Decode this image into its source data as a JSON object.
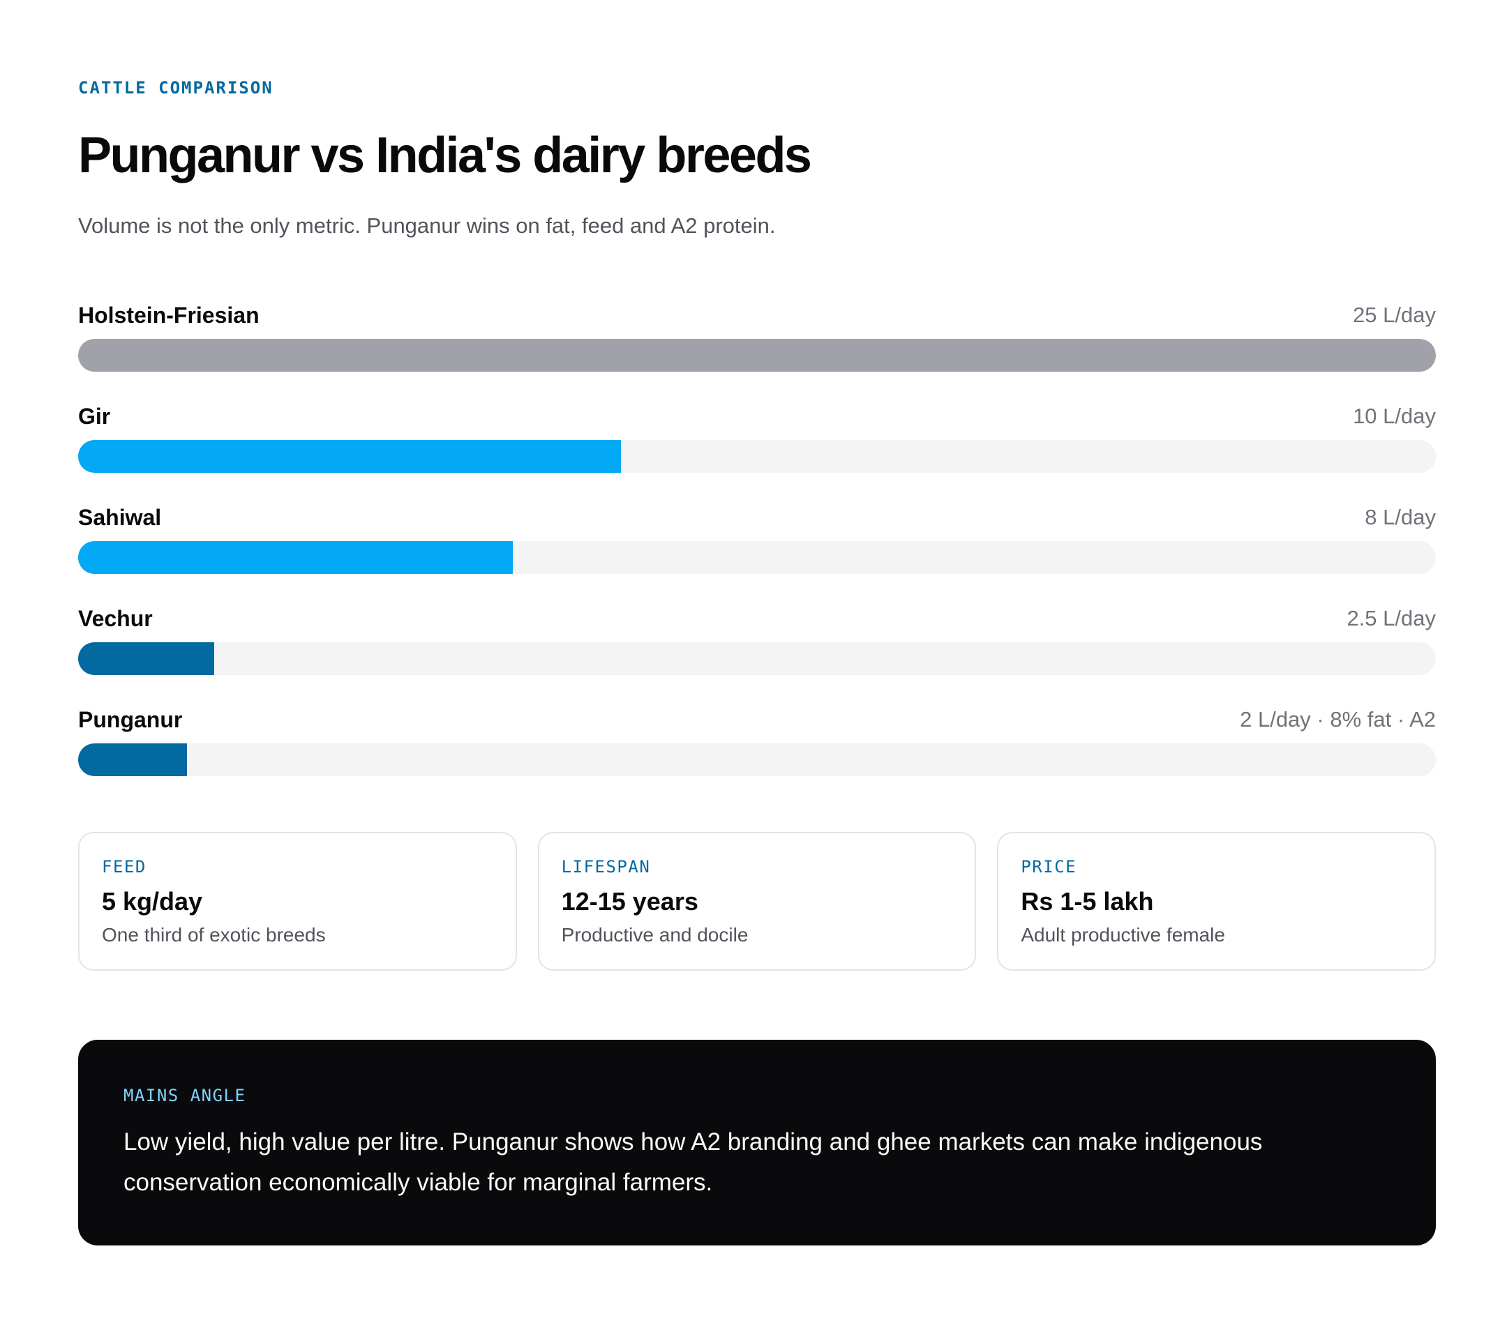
{
  "header": {
    "eyebrow": "CATTLE COMPARISON",
    "title": "Punganur vs India's dairy breeds",
    "subtitle": "Volume is not the only metric. Punganur wins on fat, feed and A2 protein."
  },
  "chart_data": {
    "type": "bar",
    "orientation": "horizontal",
    "unit": "L/day",
    "xlim": [
      0,
      25
    ],
    "categories": [
      "Holstein-Friesian",
      "Gir",
      "Sahiwal",
      "Vechur",
      "Punganur"
    ],
    "values": [
      25,
      10,
      8,
      2.5,
      2
    ],
    "value_labels": [
      "25 L/day",
      "10 L/day",
      "8 L/day",
      "2.5 L/day",
      "2 L/day · 8% fat · A2"
    ],
    "colors": [
      "#a1a1aa",
      "#03a9f4",
      "#03a9f4",
      "#0369a1",
      "#0369a1"
    ],
    "track_color": "#f4f4f5",
    "grid": false
  },
  "cards": [
    {
      "label": "FEED",
      "value": "5 kg/day",
      "desc": "One third of exotic breeds"
    },
    {
      "label": "LIFESPAN",
      "value": "12-15 years",
      "desc": "Productive and docile"
    },
    {
      "label": "PRICE",
      "value": "Rs 1-5 lakh",
      "desc": "Adult productive female"
    }
  ],
  "callout": {
    "label": "MAINS ANGLE",
    "text": "Low yield, high value per litre. Punganur shows how A2 branding and ghee markets can make indigenous conservation economically viable for marginal farmers."
  },
  "colors": {
    "accent": "#0369a1",
    "callout_bg": "#0a0a0c",
    "callout_label": "#7dd3fc"
  }
}
